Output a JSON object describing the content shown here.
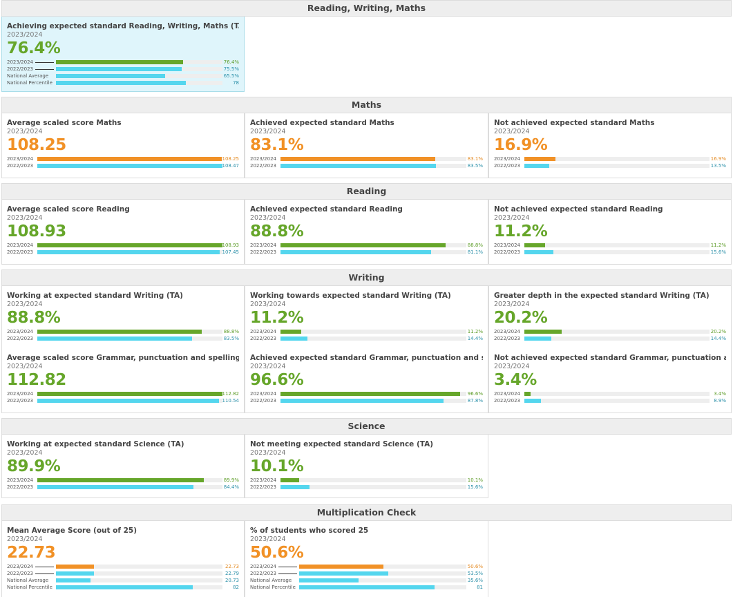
{
  "colors": {
    "green": "#66a62a",
    "orange": "#f19126",
    "blue": "#54d6ee"
  },
  "sections": [
    {
      "title": "Reading, Writing, Maths",
      "cards": [
        {
          "title": "Achieving expected standard Reading, Writing, Maths (TA)",
          "year": "2023/2024",
          "value": "76.4%",
          "color": "green",
          "highlight": true,
          "scale": 100,
          "rows": [
            {
              "label": "2023/2024",
              "value": "76.4%",
              "num": 76.4,
              "kind": "main"
            },
            {
              "label": "2022/2023",
              "value": "75.5%",
              "num": 75.5,
              "kind": "prev"
            },
            {
              "label": "National Average",
              "value": "65.5%",
              "num": 65.5,
              "kind": "prev"
            },
            {
              "label": "National Percentile",
              "value": "78",
              "num": 78,
              "kind": "prev"
            }
          ]
        }
      ]
    },
    {
      "title": "Maths",
      "cards": [
        {
          "title": "Average scaled score Maths",
          "year": "2023/2024",
          "value": "108.25",
          "color": "orange",
          "scale": 108.47,
          "rows": [
            {
              "label": "2023/2024",
              "value": "108.25",
              "num": 108.25,
              "kind": "main"
            },
            {
              "label": "2022/2023",
              "value": "108.47",
              "num": 108.47,
              "kind": "prev"
            }
          ]
        },
        {
          "title": "Achieved expected standard Maths",
          "year": "2023/2024",
          "value": "83.1%",
          "color": "orange",
          "scale": 100,
          "rows": [
            {
              "label": "2023/2024",
              "value": "83.1%",
              "num": 83.1,
              "kind": "main"
            },
            {
              "label": "2022/2023",
              "value": "83.5%",
              "num": 83.5,
              "kind": "prev"
            }
          ]
        },
        {
          "title": "Not achieved expected standard Maths",
          "year": "2023/2024",
          "value": "16.9%",
          "color": "orange",
          "scale": 100,
          "rows": [
            {
              "label": "2023/2024",
              "value": "16.9%",
              "num": 16.9,
              "kind": "main"
            },
            {
              "label": "2022/2023",
              "value": "13.5%",
              "num": 13.5,
              "kind": "prev"
            }
          ]
        }
      ]
    },
    {
      "title": "Reading",
      "cards": [
        {
          "title": "Average scaled score Reading",
          "year": "2023/2024",
          "value": "108.93",
          "color": "green",
          "scale": 108.93,
          "rows": [
            {
              "label": "2023/2024",
              "value": "108.93",
              "num": 108.93,
              "kind": "main"
            },
            {
              "label": "2022/2023",
              "value": "107.45",
              "num": 107.45,
              "kind": "prev"
            }
          ]
        },
        {
          "title": "Achieved expected standard Reading",
          "year": "2023/2024",
          "value": "88.8%",
          "color": "green",
          "scale": 100,
          "rows": [
            {
              "label": "2023/2024",
              "value": "88.8%",
              "num": 88.8,
              "kind": "main"
            },
            {
              "label": "2022/2023",
              "value": "81.1%",
              "num": 81.1,
              "kind": "prev"
            }
          ]
        },
        {
          "title": "Not achieved expected standard Reading",
          "year": "2023/2024",
          "value": "11.2%",
          "color": "green",
          "scale": 100,
          "rows": [
            {
              "label": "2023/2024",
              "value": "11.2%",
              "num": 11.2,
              "kind": "main"
            },
            {
              "label": "2022/2023",
              "value": "15.6%",
              "num": 15.6,
              "kind": "prev"
            }
          ]
        }
      ]
    },
    {
      "title": "Writing",
      "cards": [
        {
          "title": "Working at expected standard Writing (TA)",
          "year": "2023/2024",
          "value": "88.8%",
          "color": "green",
          "scale": 100,
          "rows": [
            {
              "label": "2023/2024",
              "value": "88.8%",
              "num": 88.8,
              "kind": "main"
            },
            {
              "label": "2022/2023",
              "value": "83.5%",
              "num": 83.5,
              "kind": "prev"
            }
          ]
        },
        {
          "title": "Working towards expected standard Writing (TA)",
          "year": "2023/2024",
          "value": "11.2%",
          "color": "green",
          "scale": 100,
          "rows": [
            {
              "label": "2023/2024",
              "value": "11.2%",
              "num": 11.2,
              "kind": "main"
            },
            {
              "label": "2022/2023",
              "value": "14.4%",
              "num": 14.4,
              "kind": "prev"
            }
          ]
        },
        {
          "title": "Greater depth in the expected standard Writing (TA)",
          "year": "2023/2024",
          "value": "20.2%",
          "color": "green",
          "scale": 100,
          "rows": [
            {
              "label": "2023/2024",
              "value": "20.2%",
              "num": 20.2,
              "kind": "main"
            },
            {
              "label": "2022/2023",
              "value": "14.4%",
              "num": 14.4,
              "kind": "prev"
            }
          ]
        },
        {
          "title": "Average scaled score Grammar, punctuation and spelling",
          "year": "2023/2024",
          "value": "112.82",
          "color": "green",
          "scale": 112.82,
          "rows": [
            {
              "label": "2023/2024",
              "value": "112.82",
              "num": 112.82,
              "kind": "main"
            },
            {
              "label": "2022/2023",
              "value": "110.54",
              "num": 110.54,
              "kind": "prev"
            }
          ]
        },
        {
          "title": "Achieved expected standard Grammar, punctuation and spelling",
          "year": "2023/2024",
          "value": "96.6%",
          "color": "green",
          "scale": 100,
          "rows": [
            {
              "label": "2023/2024",
              "value": "96.6%",
              "num": 96.6,
              "kind": "main"
            },
            {
              "label": "2022/2023",
              "value": "87.8%",
              "num": 87.8,
              "kind": "prev"
            }
          ]
        },
        {
          "title": "Not achieved expected standard Grammar, punctuation and spelling",
          "year": "2023/2024",
          "value": "3.4%",
          "color": "green",
          "scale": 100,
          "rows": [
            {
              "label": "2023/2024",
              "value": "3.4%",
              "num": 3.4,
              "kind": "main"
            },
            {
              "label": "2022/2023",
              "value": "8.9%",
              "num": 8.9,
              "kind": "prev"
            }
          ]
        }
      ]
    },
    {
      "title": "Science",
      "cards": [
        {
          "title": "Working at expected standard Science (TA)",
          "year": "2023/2024",
          "value": "89.9%",
          "color": "green",
          "scale": 100,
          "rows": [
            {
              "label": "2023/2024",
              "value": "89.9%",
              "num": 89.9,
              "kind": "main"
            },
            {
              "label": "2022/2023",
              "value": "84.4%",
              "num": 84.4,
              "kind": "prev"
            }
          ]
        },
        {
          "title": "Not meeting expected standard Science (TA)",
          "year": "2023/2024",
          "value": "10.1%",
          "color": "green",
          "scale": 100,
          "rows": [
            {
              "label": "2023/2024",
              "value": "10.1%",
              "num": 10.1,
              "kind": "main"
            },
            {
              "label": "2022/2023",
              "value": "15.6%",
              "num": 15.6,
              "kind": "prev"
            }
          ]
        }
      ]
    },
    {
      "title": "Multiplication Check",
      "cards": [
        {
          "title": "Mean Average Score (out of 25)",
          "year": "2023/2024",
          "value": "22.73",
          "color": "orange",
          "scale": 100,
          "rows": [
            {
              "label": "2023/2024",
              "value": "22.73",
              "num": 22.73,
              "kind": "main"
            },
            {
              "label": "2022/2023",
              "value": "22.79",
              "num": 22.79,
              "kind": "prev"
            },
            {
              "label": "National Average",
              "value": "20.73",
              "num": 20.73,
              "kind": "prev"
            },
            {
              "label": "National Percentile",
              "value": "82",
              "num": 82,
              "kind": "prev"
            }
          ]
        },
        {
          "title": "% of students who scored 25",
          "year": "2023/2024",
          "value": "50.6%",
          "color": "orange",
          "scale": 100,
          "rows": [
            {
              "label": "2023/2024",
              "value": "50.6%",
              "num": 50.6,
              "kind": "main"
            },
            {
              "label": "2022/2023",
              "value": "53.5%",
              "num": 53.5,
              "kind": "prev"
            },
            {
              "label": "National Average",
              "value": "35.6%",
              "num": 35.6,
              "kind": "prev"
            },
            {
              "label": "National Percentile",
              "value": "81",
              "num": 81,
              "kind": "prev"
            }
          ]
        }
      ]
    }
  ]
}
